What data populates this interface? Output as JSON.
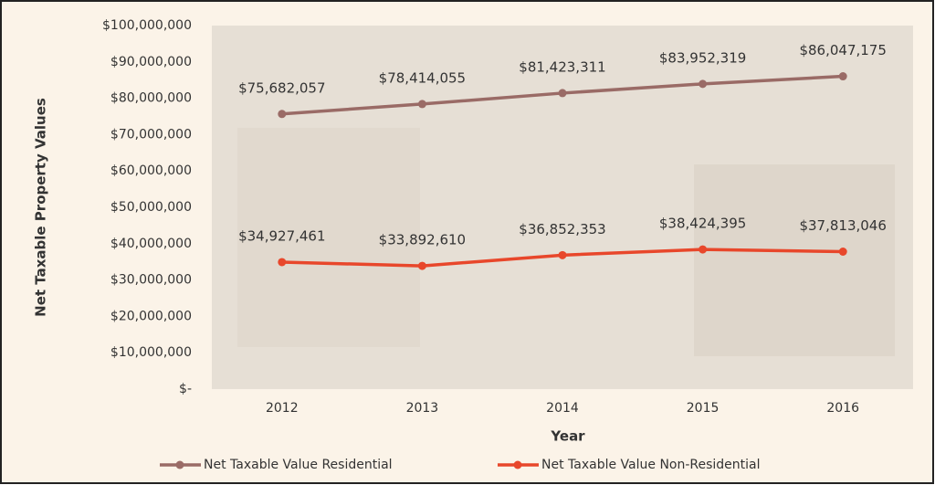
{
  "chart_data": {
    "type": "line",
    "x_label": "Year",
    "y_label": "Net Taxable Property Values",
    "categories": [
      "2012",
      "2013",
      "2014",
      "2015",
      "2016"
    ],
    "series": [
      {
        "name": "Net Taxable Value Residential",
        "color": "#9a6b66",
        "values": [
          75682057,
          78414055,
          81423311,
          83952319,
          86047175
        ],
        "value_labels": [
          "$75,682,057",
          "$78,414,055",
          "$81,423,311",
          "$83,952,319",
          "$86,047,175"
        ]
      },
      {
        "name": "Net Taxable Value Non-Residential",
        "color": "#e8472b",
        "values": [
          34927461,
          33892610,
          36852353,
          38424395,
          37813046
        ],
        "value_labels": [
          "$34,927,461",
          "$33,892,610",
          "$36,852,353",
          "$38,424,395",
          "$37,813,046"
        ]
      }
    ],
    "ylim": [
      0,
      100000000
    ],
    "yticks": [
      {
        "value": 0,
        "label": "$-"
      },
      {
        "value": 10000000,
        "label": "$10,000,000"
      },
      {
        "value": 20000000,
        "label": "$20,000,000"
      },
      {
        "value": 30000000,
        "label": "$30,000,000"
      },
      {
        "value": 40000000,
        "label": "$40,000,000"
      },
      {
        "value": 50000000,
        "label": "$50,000,000"
      },
      {
        "value": 60000000,
        "label": "$60,000,000"
      },
      {
        "value": 70000000,
        "label": "$70,000,000"
      },
      {
        "value": 80000000,
        "label": "$80,000,000"
      },
      {
        "value": 90000000,
        "label": "$90,000,000"
      },
      {
        "value": 100000000,
        "label": "$100,000,000"
      }
    ],
    "legend": "bottom"
  }
}
